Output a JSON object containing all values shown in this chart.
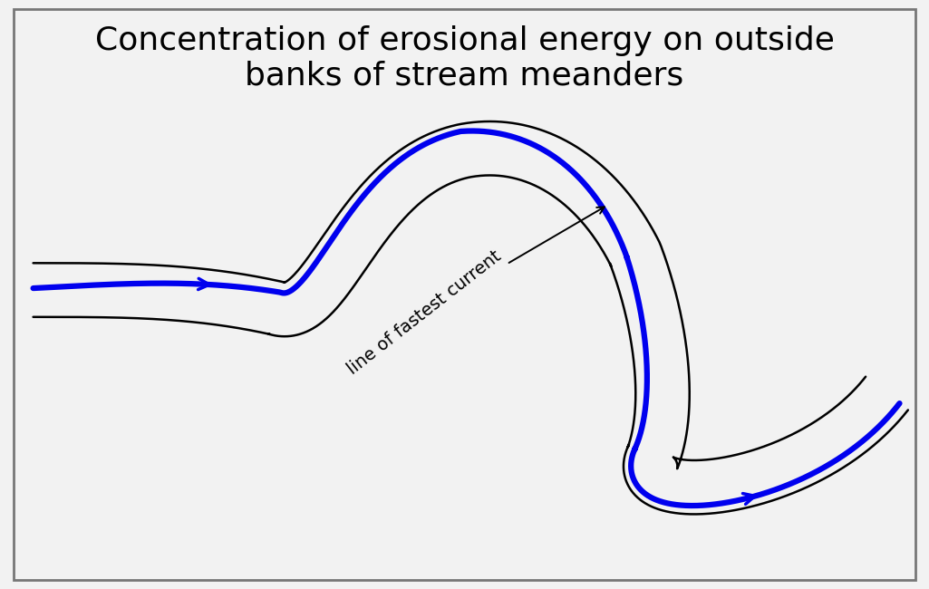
{
  "title": "Concentration of erosional energy on outside\nbanks of stream meanders",
  "title_fontsize": 26,
  "bg_color": "#f2f2f2",
  "river_color": "#000000",
  "blue_color": "#0000ee",
  "river_lw": 1.8,
  "blue_lw": 4.5,
  "label_text": "line of fastest current",
  "label_fontsize": 14,
  "border_color": "#888888"
}
